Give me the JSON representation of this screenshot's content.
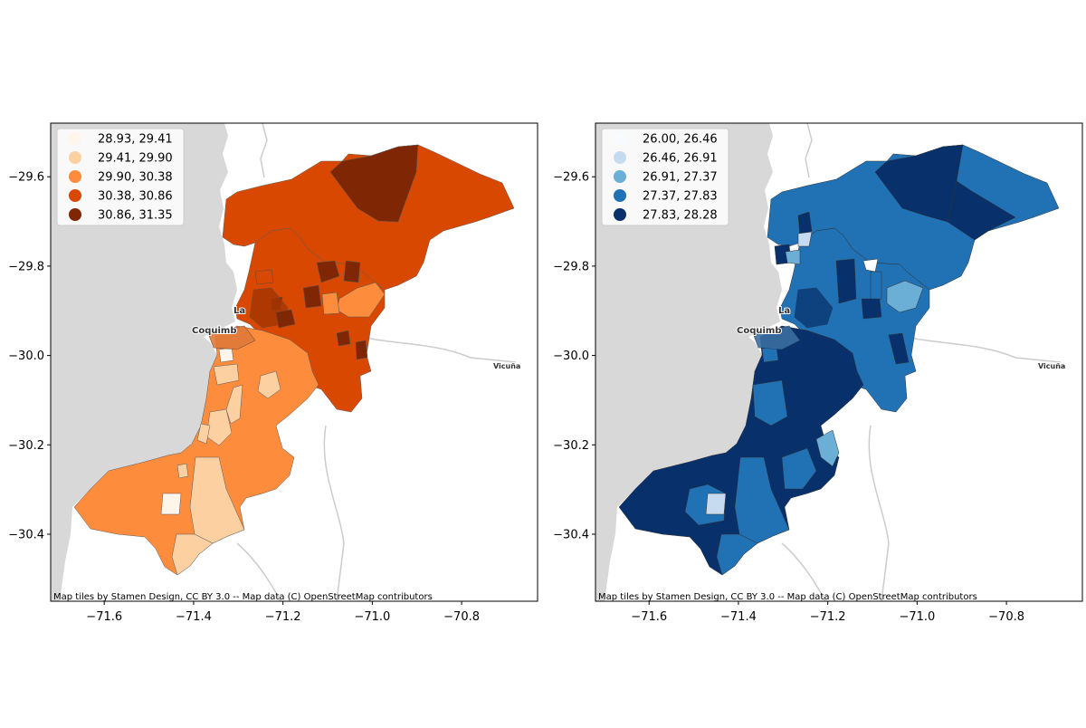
{
  "chart_data": [
    {
      "type": "choropleth",
      "scheme": "quantiles",
      "legend_position": "top-left",
      "legend": [
        {
          "label": "28.93, 29.41",
          "color": "#fff5eb"
        },
        {
          "label": "29.41, 29.90",
          "color": "#fdd0a2"
        },
        {
          "label": "29.90, 30.38",
          "color": "#fd8d3c"
        },
        {
          "label": "30.38, 30.86",
          "color": "#d94801"
        },
        {
          "label": "30.86, 31.35",
          "color": "#7f2704"
        }
      ],
      "xlim": [
        -71.72,
        -70.63
      ],
      "ylim": [
        -30.55,
        -29.48
      ],
      "x_ticks": [
        "−71.6",
        "−71.4",
        "−71.2",
        "−71.0",
        "−70.8"
      ],
      "y_ticks": [
        "−29.6",
        "−29.8",
        "−30.0",
        "−30.2",
        "−30.4"
      ],
      "attribution": "Map tiles by Stamen Design, CC BY 3.0 -- Map data (C) OpenStreetMap contributors",
      "place_labels": [
        "La",
        "Coquimb",
        "Vicuña"
      ]
    },
    {
      "type": "choropleth",
      "scheme": "quantiles",
      "legend_position": "top-left",
      "legend": [
        {
          "label": "26.00, 26.46",
          "color": "#f7fbff"
        },
        {
          "label": "26.46, 26.91",
          "color": "#c6dbef"
        },
        {
          "label": "26.91, 27.37",
          "color": "#6baed6"
        },
        {
          "label": "27.37, 27.83",
          "color": "#2171b5"
        },
        {
          "label": "27.83, 28.28",
          "color": "#08306b"
        }
      ],
      "xlim": [
        -71.72,
        -70.63
      ],
      "ylim": [
        -30.55,
        -29.48
      ],
      "x_ticks": [
        "−71.6",
        "−71.4",
        "−71.2",
        "−71.0",
        "−70.8"
      ],
      "y_ticks": [
        "−29.6",
        "−29.8",
        "−30.0",
        "−30.2",
        "−30.4"
      ],
      "attribution": "Map tiles by Stamen Design, CC BY 3.0 -- Map data (C) OpenStreetMap contributors",
      "place_labels": [
        "La",
        "Coquimb",
        "Vicuña"
      ]
    }
  ]
}
